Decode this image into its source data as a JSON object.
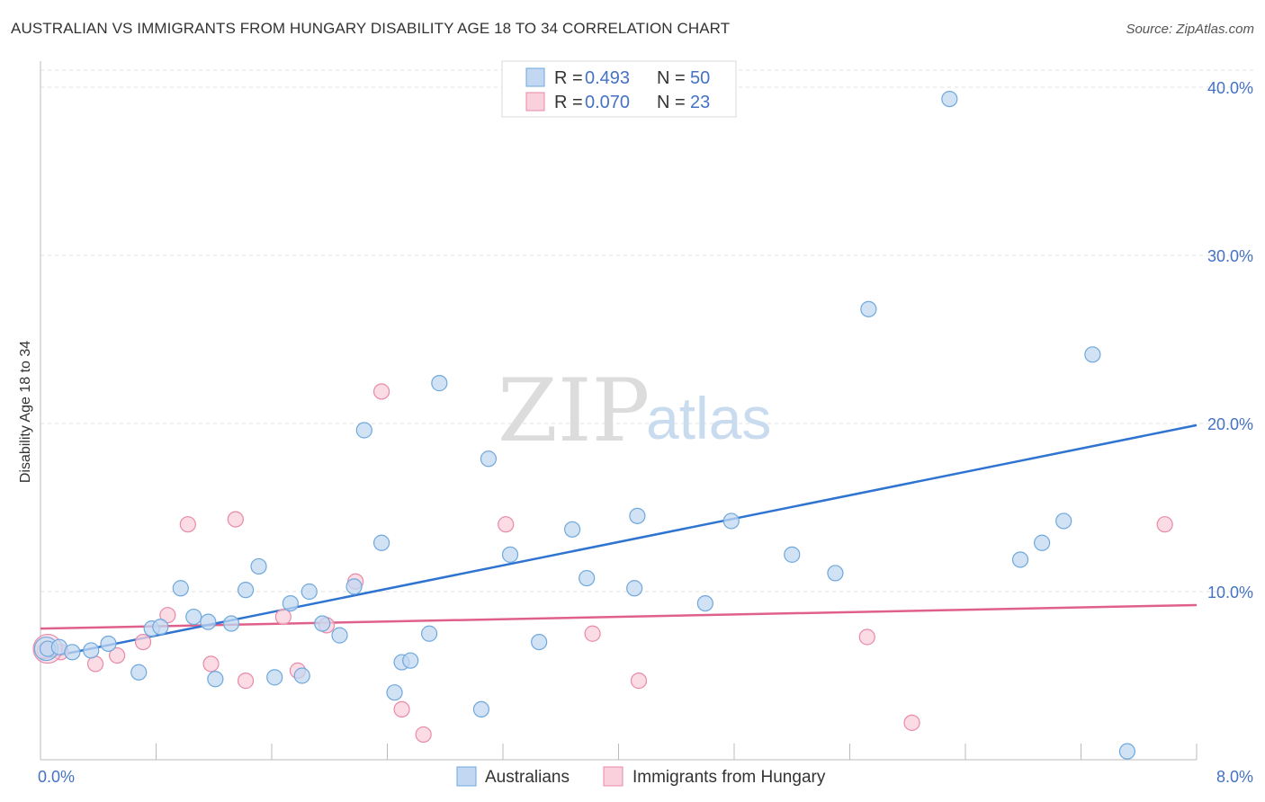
{
  "header": {
    "title": "AUSTRALIAN VS IMMIGRANTS FROM HUNGARY DISABILITY AGE 18 TO 34 CORRELATION CHART",
    "source": "Source: ZipAtlas.com"
  },
  "watermark": {
    "zip": "ZIP",
    "atlas": "atlas"
  },
  "legend": {
    "rows": [
      {
        "r_label": "R =",
        "r_value": "0.493",
        "n_label": "N =",
        "n_value": "50"
      },
      {
        "r_label": "R =",
        "r_value": "0.070",
        "n_label": "N =",
        "n_value": "23"
      }
    ]
  },
  "chart_data": {
    "type": "scatter",
    "title": "AUSTRALIAN VS IMMIGRANTS FROM HUNGARY DISABILITY AGE 18 TO 34 CORRELATION CHART",
    "xlabel": "",
    "ylabel": "Disability Age 18 to 34",
    "xlim": [
      0,
      8
    ],
    "ylim": [
      0,
      41.5
    ],
    "x_tick_labels": [
      "0.0%",
      "8.0%"
    ],
    "y_ticks": [
      10,
      20,
      30,
      40
    ],
    "y_tick_labels": [
      "10.0%",
      "20.0%",
      "30.0%",
      "40.0%"
    ],
    "grid": true,
    "legend_position": "top-center",
    "colors": {
      "blue": "#6fa8dc",
      "blue_fill": "#c2d8f2",
      "blue_line": "#2f74d0",
      "pink": "#e88aa8",
      "pink_fill": "#f9d0dc",
      "pink_line": "#e0608c"
    },
    "series": [
      {
        "name": "Australians",
        "r": 0.493,
        "n": 50,
        "trend": {
          "x": [
            0,
            8
          ],
          "y": [
            6.0,
            19.9
          ]
        },
        "points": [
          [
            0.05,
            6.6
          ],
          [
            0.13,
            6.7
          ],
          [
            0.22,
            6.4
          ],
          [
            0.35,
            6.5
          ],
          [
            0.47,
            6.9
          ],
          [
            0.68,
            5.2
          ],
          [
            0.77,
            7.8
          ],
          [
            0.83,
            7.9
          ],
          [
            0.97,
            10.2
          ],
          [
            1.06,
            8.5
          ],
          [
            1.16,
            8.2
          ],
          [
            1.21,
            4.8
          ],
          [
            1.32,
            8.1
          ],
          [
            1.42,
            10.1
          ],
          [
            1.51,
            11.5
          ],
          [
            1.62,
            4.9
          ],
          [
            1.73,
            9.3
          ],
          [
            1.81,
            5.0
          ],
          [
            1.86,
            10.0
          ],
          [
            1.95,
            8.1
          ],
          [
            2.07,
            7.4
          ],
          [
            2.17,
            10.3
          ],
          [
            2.24,
            19.6
          ],
          [
            2.36,
            12.9
          ],
          [
            2.45,
            4.0
          ],
          [
            2.5,
            5.8
          ],
          [
            2.56,
            5.9
          ],
          [
            2.69,
            7.5
          ],
          [
            2.76,
            22.4
          ],
          [
            3.1,
            17.9
          ],
          [
            3.05,
            3.0
          ],
          [
            3.25,
            12.2
          ],
          [
            3.45,
            7.0
          ],
          [
            3.68,
            13.7
          ],
          [
            3.78,
            10.8
          ],
          [
            4.11,
            10.2
          ],
          [
            4.13,
            14.5
          ],
          [
            4.6,
            9.3
          ],
          [
            4.78,
            14.2
          ],
          [
            5.2,
            12.2
          ],
          [
            5.5,
            11.1
          ],
          [
            5.73,
            26.8
          ],
          [
            6.29,
            39.3
          ],
          [
            6.78,
            11.9
          ],
          [
            6.93,
            12.9
          ],
          [
            7.08,
            14.2
          ],
          [
            7.28,
            24.1
          ],
          [
            7.52,
            0.5
          ]
        ]
      },
      {
        "name": "Immigrants from Hungary",
        "r": 0.07,
        "n": 23,
        "trend": {
          "x": [
            0,
            8
          ],
          "y": [
            7.8,
            9.2
          ]
        },
        "points": [
          [
            0.03,
            6.5
          ],
          [
            0.14,
            6.4
          ],
          [
            0.38,
            5.7
          ],
          [
            0.53,
            6.2
          ],
          [
            0.71,
            7.0
          ],
          [
            0.88,
            8.6
          ],
          [
            1.02,
            14.0
          ],
          [
            1.18,
            5.7
          ],
          [
            1.35,
            14.3
          ],
          [
            1.42,
            4.7
          ],
          [
            1.68,
            8.5
          ],
          [
            1.78,
            5.3
          ],
          [
            1.98,
            8.0
          ],
          [
            2.18,
            10.6
          ],
          [
            2.36,
            21.9
          ],
          [
            2.5,
            3.0
          ],
          [
            2.65,
            1.5
          ],
          [
            3.22,
            14.0
          ],
          [
            3.82,
            7.5
          ],
          [
            4.14,
            4.7
          ],
          [
            5.72,
            7.3
          ],
          [
            6.03,
            2.2
          ],
          [
            7.78,
            14.0
          ]
        ]
      }
    ]
  },
  "bottom_legend": {
    "items": [
      {
        "label": "Australians"
      },
      {
        "label": "Immigrants from Hungary"
      }
    ]
  }
}
